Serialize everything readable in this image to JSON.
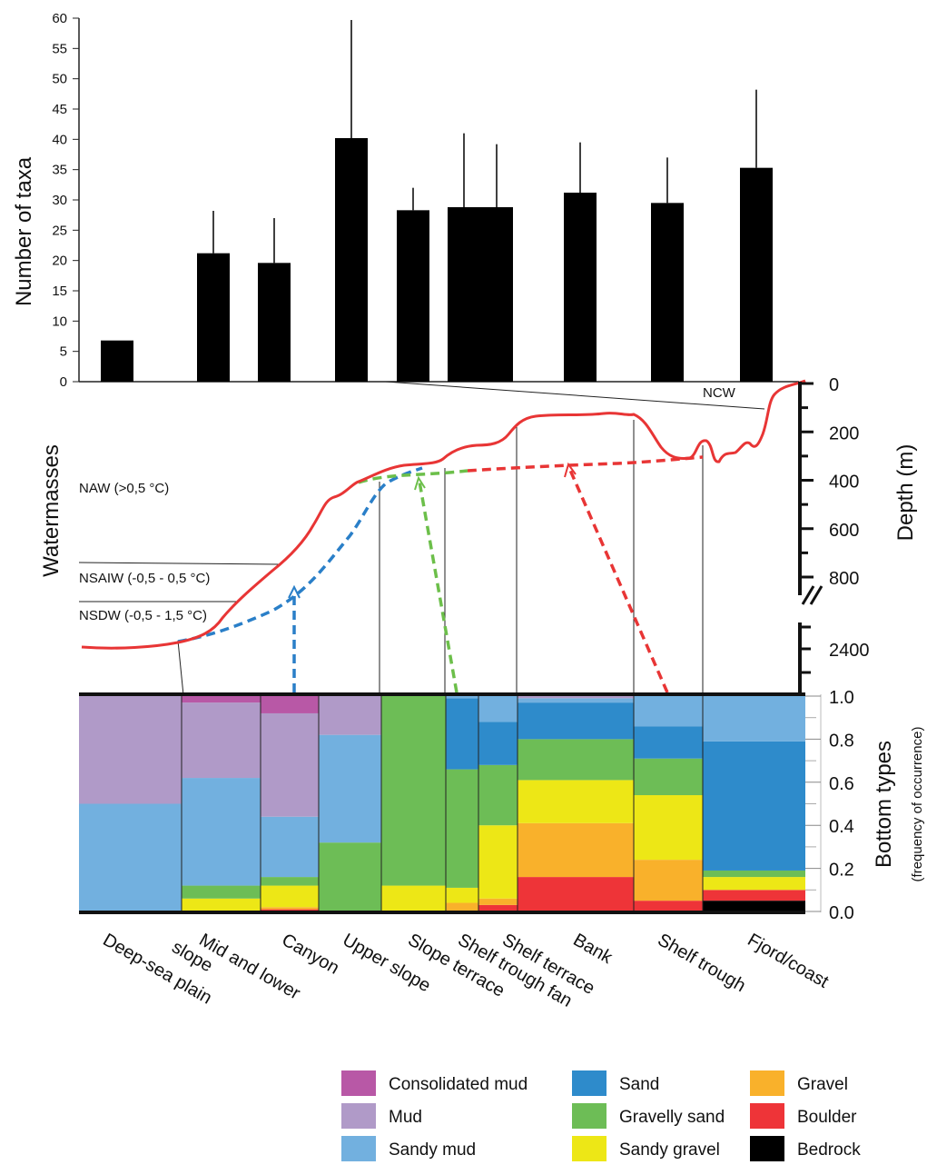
{
  "chart_data": [
    {
      "type": "bar",
      "ylabel": "Number of taxa",
      "ylim": [
        0,
        60
      ],
      "yticks": [
        0,
        5,
        10,
        15,
        20,
        25,
        30,
        35,
        40,
        45,
        50,
        55,
        60
      ],
      "bars": [
        {
          "category": "Deep-sea plain",
          "value": 6.8,
          "error_top": null
        },
        {
          "category": "Mid and lower slope",
          "value": 21.2,
          "error_top": 28.2
        },
        {
          "category": "Canyon",
          "value": 19.6,
          "error_top": 27.0
        },
        {
          "category": "Upper slope",
          "value": 40.2,
          "error_top": 59.7
        },
        {
          "category": "Slope terrace",
          "value": 28.3,
          "error_top": 32.0
        },
        {
          "category": "Shelf trough fan (a)",
          "value": 28.8,
          "error_top": 41.0
        },
        {
          "category": "Shelf trough fan (b)",
          "value": 28.8,
          "error_top": 39.2
        },
        {
          "category": "Bank",
          "value": 31.2,
          "error_top": 39.5
        },
        {
          "category": "Shelf trough",
          "value": 29.5,
          "error_top": 37.0
        },
        {
          "category": "Fjord/coast",
          "value": 35.3,
          "error_top": 48.2
        }
      ]
    },
    {
      "type": "line",
      "ylabel": "Depth (m)",
      "left_label": "Watermasses",
      "yticks_upper": [
        0,
        200,
        400,
        600,
        800
      ],
      "yticks_lower": [
        2400
      ],
      "watermasses": [
        "NCW",
        "NAW (>0,5 °C)",
        "NSAIW (-0,5 - 0,5 °C)",
        "NSDW (-0,5 - 1,5 °C)"
      ]
    },
    {
      "type": "bar",
      "stacked": true,
      "ylabel": "Bottom types",
      "ylabel_sub": "(frequency of occurrence)",
      "ylim": [
        0,
        1
      ],
      "yticks": [
        "0.0",
        "0.2",
        "0.4",
        "0.6",
        "0.8",
        "1.0"
      ],
      "categories": [
        "Deep-sea plain",
        "Mid and lower slope",
        "Canyon",
        "Upper slope",
        "Slope terrace",
        "Shelf trough fan",
        "Shelf terrace",
        "Bank",
        "Shelf trough",
        "Fjord/coast"
      ],
      "series": [
        {
          "name": "Bedrock",
          "color": "#000000",
          "values": [
            0,
            0,
            0,
            0,
            0,
            0,
            0,
            0,
            0,
            0.05
          ]
        },
        {
          "name": "Boulder",
          "color": "#ee3438",
          "values": [
            0,
            0,
            0.01,
            0,
            0,
            0,
            0.03,
            0.16,
            0.05,
            0.05
          ]
        },
        {
          "name": "Gravel",
          "color": "#f9b12b",
          "values": [
            0,
            0,
            0.01,
            0,
            0,
            0.04,
            0.03,
            0.25,
            0.19,
            0
          ]
        },
        {
          "name": "Sandy gravel",
          "color": "#ede716",
          "values": [
            0,
            0.06,
            0.1,
            0,
            0.12,
            0.07,
            0.34,
            0.2,
            0.3,
            0.06
          ]
        },
        {
          "name": "Gravelly sand",
          "color": "#6dbd56",
          "values": [
            0,
            0.06,
            0.04,
            0.32,
            0.88,
            0.55,
            0.28,
            0.19,
            0.17,
            0.03
          ]
        },
        {
          "name": "Sand",
          "color": "#2e8bcb",
          "values": [
            0,
            0,
            0,
            0,
            0,
            0.33,
            0.2,
            0.17,
            0.15,
            0.6
          ]
        },
        {
          "name": "Sandy mud",
          "color": "#72b0df",
          "values": [
            0.5,
            0.5,
            0.28,
            0.5,
            0,
            0.01,
            0.12,
            0.02,
            0.14,
            0.21
          ]
        },
        {
          "name": "Mud",
          "color": "#b09ac8",
          "values": [
            0.5,
            0.35,
            0.48,
            0.18,
            0,
            0,
            0,
            0.01,
            0,
            0
          ]
        },
        {
          "name": "Consolidated mud",
          "color": "#b858a6",
          "values": [
            0,
            0.03,
            0.08,
            0,
            0,
            0,
            0,
            0,
            0,
            0
          ]
        }
      ]
    }
  ],
  "labels": {
    "categories": [
      "Deep-sea plain",
      "Mid and lower slope",
      "Canyon",
      "Upper slope",
      "Slope terrace",
      "Shelf trough fan",
      "Shelf terrace",
      "Bank",
      "Shelf trough",
      "Fjord/coast"
    ],
    "legend": [
      {
        "name": "Consolidated mud",
        "color": "#b858a6"
      },
      {
        "name": "Mud",
        "color": "#b09ac8"
      },
      {
        "name": "Sandy mud",
        "color": "#72b0df"
      },
      {
        "name": "Sand",
        "color": "#2e8bcb"
      },
      {
        "name": "Gravelly sand",
        "color": "#6dbd56"
      },
      {
        "name": "Sandy gravel",
        "color": "#ede716"
      },
      {
        "name": "Gravel",
        "color": "#f9b12b"
      },
      {
        "name": "Boulder",
        "color": "#ee3438"
      },
      {
        "name": "Bedrock",
        "color": "#000000"
      }
    ]
  }
}
